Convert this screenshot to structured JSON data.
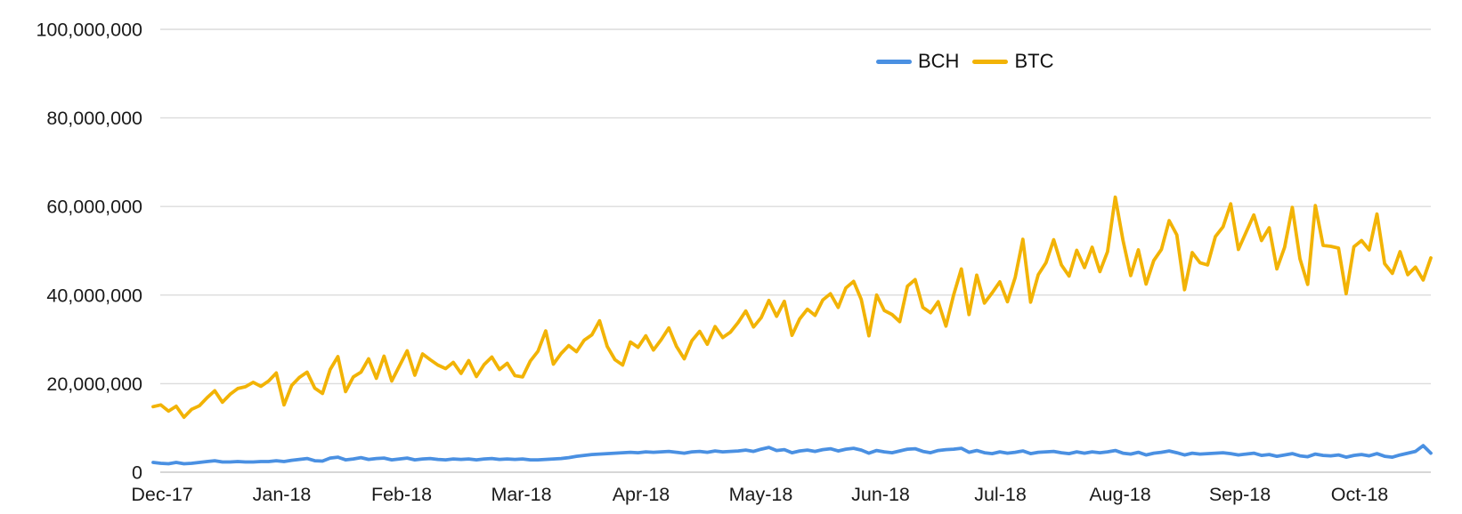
{
  "page": {
    "background": "#ffffff"
  },
  "chart_data": {
    "type": "line",
    "title": "",
    "x_range_label": "Dec 2017 - Oct 2018",
    "x_tick_labels": [
      "Dec-17",
      "Jan-18",
      "Feb-18",
      "Mar-18",
      "Apr-18",
      "May-18",
      "Jun-18",
      "Jul-18",
      "Aug-18",
      "Sep-18",
      "Oct-18"
    ],
    "y_ticks": [
      {
        "value_millions": 0,
        "label": "0"
      },
      {
        "value_millions": 20,
        "label": "20,000,000"
      },
      {
        "value_millions": 40,
        "label": "40,000,000"
      },
      {
        "value_millions": 60,
        "label": "60,000,000"
      },
      {
        "value_millions": 80,
        "label": "80,000,000"
      },
      {
        "value_millions": 100,
        "label": "100,000,000"
      }
    ],
    "ylim_millions": [
      0,
      100
    ],
    "values_unit": "millions",
    "sampling": "one point per ~2 days, read off the plotted lines",
    "grid": "horizontal",
    "axis_text_color": "#1a1a1a",
    "grid_color": "#dcdcdc",
    "axis_line_color": "#c9c9c9",
    "legend": {
      "position": "top-center",
      "entries": [
        "BCH",
        "BTC"
      ]
    },
    "series": [
      {
        "name": "BCH",
        "color": "#4A90E2",
        "values_millions": [
          2.2,
          2.0,
          1.9,
          2.2,
          1.9,
          2.0,
          2.2,
          2.4,
          2.6,
          2.3,
          2.3,
          2.4,
          2.3,
          2.3,
          2.4,
          2.4,
          2.6,
          2.4,
          2.7,
          2.9,
          3.1,
          2.6,
          2.5,
          3.2,
          3.4,
          2.8,
          3.0,
          3.3,
          2.9,
          3.1,
          3.2,
          2.8,
          3.0,
          3.2,
          2.8,
          3.0,
          3.1,
          2.9,
          2.8,
          3.0,
          2.9,
          3.0,
          2.8,
          3.0,
          3.1,
          2.9,
          3.0,
          2.9,
          3.0,
          2.8,
          2.8,
          2.9,
          3.0,
          3.1,
          3.3,
          3.6,
          3.8,
          4.0,
          4.1,
          4.2,
          4.3,
          4.4,
          4.5,
          4.4,
          4.6,
          4.5,
          4.6,
          4.7,
          4.5,
          4.3,
          4.6,
          4.7,
          4.5,
          4.8,
          4.6,
          4.7,
          4.8,
          5.0,
          4.7,
          5.2,
          5.6,
          4.9,
          5.1,
          4.4,
          4.8,
          5.0,
          4.7,
          5.1,
          5.3,
          4.8,
          5.2,
          5.4,
          5.0,
          4.3,
          4.9,
          4.6,
          4.4,
          4.8,
          5.2,
          5.3,
          4.7,
          4.4,
          4.9,
          5.1,
          5.2,
          5.4,
          4.5,
          4.9,
          4.4,
          4.2,
          4.6,
          4.3,
          4.5,
          4.8,
          4.2,
          4.5,
          4.6,
          4.7,
          4.4,
          4.2,
          4.6,
          4.3,
          4.6,
          4.4,
          4.6,
          4.9,
          4.3,
          4.1,
          4.5,
          3.9,
          4.3,
          4.5,
          4.8,
          4.4,
          3.9,
          4.3,
          4.1,
          4.2,
          4.3,
          4.4,
          4.2,
          3.9,
          4.1,
          4.3,
          3.8,
          4.0,
          3.6,
          3.9,
          4.2,
          3.7,
          3.5,
          4.1,
          3.8,
          3.7,
          3.9,
          3.4,
          3.8,
          4.0,
          3.7,
          4.2,
          3.6,
          3.4,
          3.9,
          4.3,
          4.7,
          6.0,
          4.3
        ]
      },
      {
        "name": "BTC",
        "color": "#F2B305",
        "values_millions": [
          14.8,
          15.2,
          13.8,
          14.9,
          12.4,
          14.2,
          15.0,
          16.8,
          18.4,
          15.8,
          17.6,
          18.9,
          19.3,
          20.3,
          19.4,
          20.6,
          22.4,
          15.2,
          19.6,
          21.4,
          22.6,
          19.0,
          17.8,
          23.2,
          26.1,
          18.2,
          21.5,
          22.6,
          25.6,
          21.2,
          26.2,
          20.6,
          24.0,
          27.4,
          21.9,
          26.7,
          25.4,
          24.2,
          23.4,
          24.8,
          22.3,
          25.2,
          21.6,
          24.3,
          26.0,
          23.2,
          24.6,
          21.8,
          21.5,
          25.1,
          27.3,
          31.9,
          24.4,
          26.8,
          28.6,
          27.2,
          29.8,
          31.0,
          34.2,
          28.4,
          25.4,
          24.2,
          29.4,
          28.2,
          30.8,
          27.6,
          29.9,
          32.6,
          28.4,
          25.6,
          29.7,
          31.8,
          28.9,
          32.9,
          30.4,
          31.6,
          33.8,
          36.4,
          32.8,
          34.9,
          38.8,
          35.2,
          38.6,
          30.9,
          34.6,
          36.8,
          35.4,
          38.9,
          40.3,
          37.2,
          41.6,
          43.1,
          39.0,
          30.8,
          40.0,
          36.5,
          35.6,
          34.0,
          42.0,
          43.5,
          37.2,
          36.0,
          38.5,
          33.0,
          40.0,
          45.9,
          35.6,
          44.5,
          38.2,
          40.5,
          43.0,
          38.5,
          44.0,
          52.6,
          38.4,
          44.6,
          47.3,
          52.5,
          46.8,
          44.3,
          50.1,
          46.2,
          50.8,
          45.3,
          49.8,
          62.1,
          52.4,
          44.4,
          50.2,
          42.5,
          47.8,
          50.3,
          56.8,
          53.6,
          41.2,
          49.6,
          47.3,
          46.8,
          53.2,
          55.4,
          60.6,
          50.3,
          54.2,
          58.1,
          52.3,
          55.2,
          45.9,
          50.8,
          59.8,
          48.2,
          42.4,
          60.2,
          51.2,
          51.0,
          50.6,
          40.3,
          50.9,
          52.3,
          50.2,
          58.3,
          47.1,
          44.9,
          49.8,
          44.6,
          46.3,
          43.4,
          48.4
        ]
      }
    ]
  }
}
